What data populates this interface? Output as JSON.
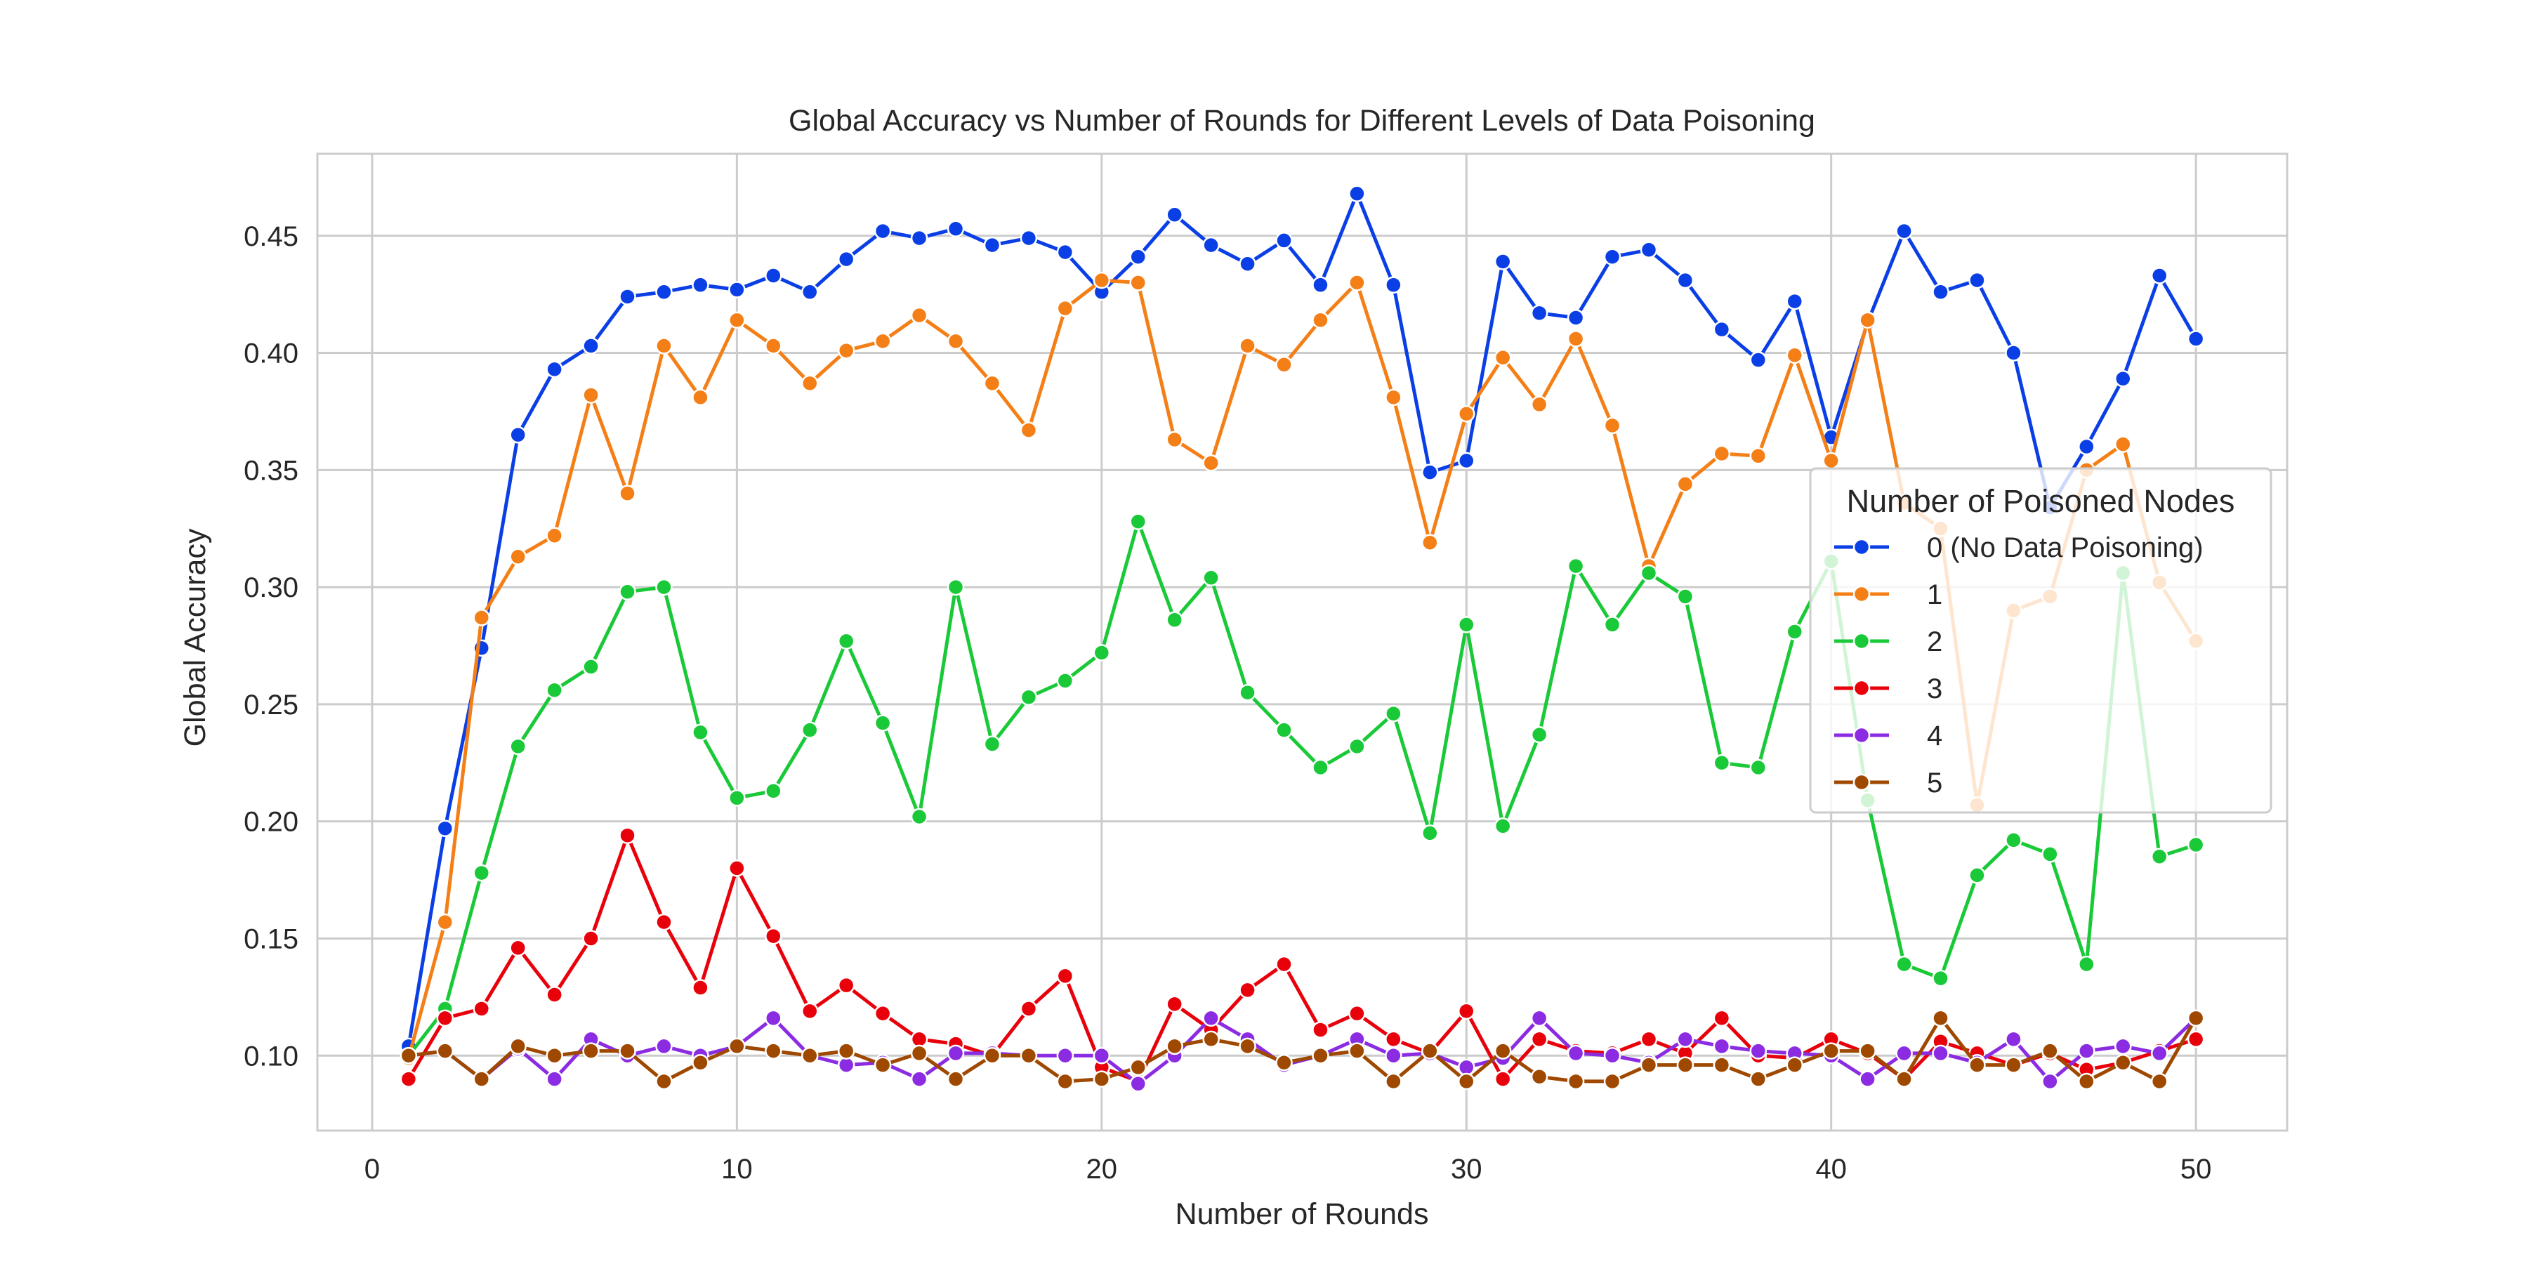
{
  "chart_data": {
    "type": "line",
    "title": "Global Accuracy vs Number of Rounds for Different Levels of Data Poisoning",
    "xlabel": "Number of Rounds",
    "ylabel": "Global Accuracy",
    "xlim": [
      -1.5,
      52.5
    ],
    "ylim": [
      0.068,
      0.485
    ],
    "xticks": [
      0,
      10,
      20,
      30,
      40,
      50
    ],
    "yticks": [
      0.1,
      0.15,
      0.2,
      0.25,
      0.3,
      0.35,
      0.4,
      0.45
    ],
    "grid": true,
    "legend": {
      "title": "Number of Poisoned Nodes",
      "placement": "center-right"
    },
    "x": [
      1,
      2,
      3,
      4,
      5,
      6,
      7,
      8,
      9,
      10,
      11,
      12,
      13,
      14,
      15,
      16,
      17,
      18,
      19,
      20,
      21,
      22,
      23,
      24,
      25,
      26,
      27,
      28,
      29,
      30,
      31,
      32,
      33,
      34,
      35,
      36,
      37,
      38,
      39,
      40,
      41,
      42,
      43,
      44,
      45,
      46,
      47,
      48,
      49,
      50
    ],
    "series": [
      {
        "name": "0 (No Data Poisoning)",
        "color": "#0b3fe6",
        "values": [
          0.104,
          0.197,
          0.274,
          0.365,
          0.393,
          0.403,
          0.424,
          0.426,
          0.429,
          0.427,
          0.433,
          0.426,
          0.44,
          0.452,
          0.449,
          0.453,
          0.446,
          0.449,
          0.443,
          0.426,
          0.441,
          0.459,
          0.446,
          0.438,
          0.448,
          0.429,
          0.468,
          0.429,
          0.349,
          0.354,
          0.439,
          0.417,
          0.415,
          0.441,
          0.444,
          0.431,
          0.41,
          0.397,
          0.422,
          0.364,
          0.413,
          0.452,
          0.426,
          0.431,
          0.4,
          0.334,
          0.36,
          0.389,
          0.433,
          0.406
        ]
      },
      {
        "name": "1",
        "color": "#f47f17",
        "values": [
          0.099,
          0.157,
          0.287,
          0.313,
          0.322,
          0.382,
          0.34,
          0.403,
          0.381,
          0.414,
          0.403,
          0.387,
          0.401,
          0.405,
          0.416,
          0.405,
          0.387,
          0.367,
          0.419,
          0.431,
          0.43,
          0.363,
          0.353,
          0.403,
          0.395,
          0.414,
          0.43,
          0.381,
          0.319,
          0.374,
          0.398,
          0.378,
          0.406,
          0.369,
          0.309,
          0.344,
          0.357,
          0.356,
          0.399,
          0.354,
          0.414,
          0.336,
          0.325,
          0.207,
          0.29,
          0.296,
          0.35,
          0.361,
          0.302,
          0.277
        ]
      },
      {
        "name": "2",
        "color": "#1ac938",
        "values": [
          0.1,
          0.12,
          0.178,
          0.232,
          0.256,
          0.266,
          0.298,
          0.3,
          0.238,
          0.21,
          0.213,
          0.239,
          0.277,
          0.242,
          0.202,
          0.3,
          0.233,
          0.253,
          0.26,
          0.272,
          0.328,
          0.286,
          0.304,
          0.255,
          0.239,
          0.223,
          0.232,
          0.246,
          0.195,
          0.284,
          0.198,
          0.237,
          0.309,
          0.284,
          0.306,
          0.296,
          0.225,
          0.223,
          0.281,
          0.311,
          0.209,
          0.139,
          0.133,
          0.177,
          0.192,
          0.186,
          0.139,
          0.306,
          0.185,
          0.19
        ]
      },
      {
        "name": "3",
        "color": "#e8000b",
        "values": [
          0.09,
          0.116,
          0.12,
          0.146,
          0.126,
          0.15,
          0.194,
          0.157,
          0.129,
          0.18,
          0.151,
          0.119,
          0.13,
          0.118,
          0.107,
          0.105,
          0.1,
          0.12,
          0.134,
          0.095,
          0.089,
          0.122,
          0.111,
          0.128,
          0.139,
          0.111,
          0.118,
          0.107,
          0.101,
          0.119,
          0.09,
          0.107,
          0.102,
          0.101,
          0.107,
          0.101,
          0.116,
          0.1,
          0.099,
          0.107,
          0.101,
          0.09,
          0.106,
          0.101,
          0.096,
          0.101,
          0.094,
          0.097,
          0.102,
          0.107
        ]
      },
      {
        "name": "4",
        "color": "#8b2be2",
        "values": [
          0.1,
          0.102,
          0.09,
          0.103,
          0.09,
          0.107,
          0.1,
          0.104,
          0.1,
          0.104,
          0.116,
          0.1,
          0.096,
          0.097,
          0.09,
          0.101,
          0.101,
          0.1,
          0.1,
          0.1,
          0.088,
          0.1,
          0.116,
          0.107,
          0.096,
          0.1,
          0.107,
          0.1,
          0.101,
          0.095,
          0.099,
          0.116,
          0.101,
          0.1,
          0.097,
          0.107,
          0.104,
          0.102,
          0.101,
          0.1,
          0.09,
          0.101,
          0.101,
          0.097,
          0.107,
          0.089,
          0.102,
          0.104,
          0.101,
          0.116
        ]
      },
      {
        "name": "5",
        "color": "#9f4800",
        "values": [
          0.1,
          0.102,
          0.09,
          0.104,
          0.1,
          0.102,
          0.102,
          0.089,
          0.097,
          0.104,
          0.102,
          0.1,
          0.102,
          0.096,
          0.101,
          0.09,
          0.1,
          0.1,
          0.089,
          0.09,
          0.095,
          0.104,
          0.107,
          0.104,
          0.097,
          0.1,
          0.102,
          0.089,
          0.102,
          0.089,
          0.102,
          0.091,
          0.089,
          0.089,
          0.096,
          0.096,
          0.096,
          0.09,
          0.096,
          0.102,
          0.102,
          0.09,
          0.116,
          0.096,
          0.096,
          0.102,
          0.089,
          0.097,
          0.089,
          0.116
        ]
      }
    ]
  }
}
